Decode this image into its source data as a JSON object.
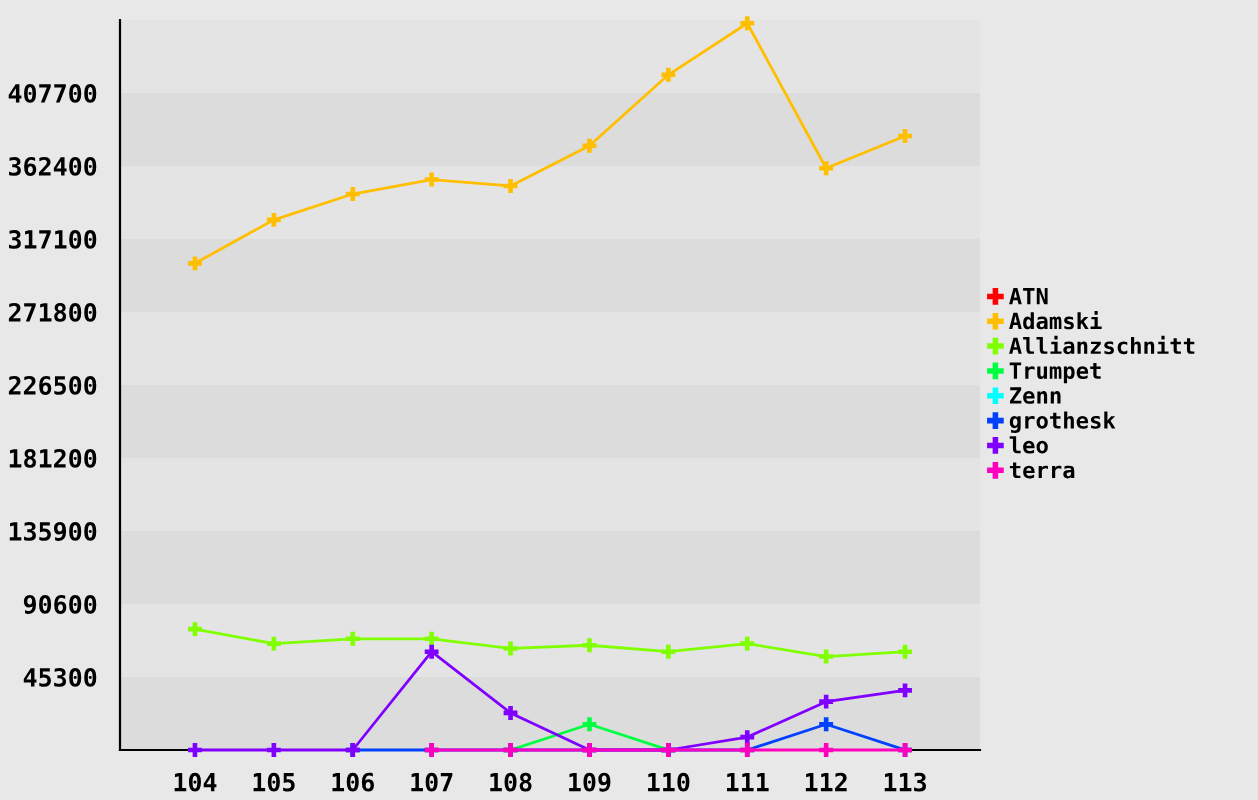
{
  "chart_data": {
    "type": "line",
    "categories": [
      "104",
      "105",
      "106",
      "107",
      "108",
      "109",
      "110",
      "111",
      "112",
      "113"
    ],
    "series": [
      {
        "name": "ATN",
        "color": "#ff0000",
        "values": [
          null,
          null,
          null,
          null,
          null,
          null,
          null,
          null,
          null,
          null
        ]
      },
      {
        "name": "Adamski",
        "color": "#ffbf00",
        "values": [
          302000,
          329000,
          345000,
          354000,
          350000,
          375000,
          419000,
          451000,
          361000,
          381000
        ]
      },
      {
        "name": "Allianzschnitt",
        "color": "#80ff00",
        "values": [
          75000,
          66000,
          69000,
          69000,
          63000,
          65000,
          61000,
          66000,
          58000,
          61000
        ]
      },
      {
        "name": "Trumpet",
        "color": "#00ff40",
        "values": [
          null,
          null,
          null,
          null,
          0,
          16000,
          0,
          null,
          null,
          null
        ]
      },
      {
        "name": "Zenn",
        "color": "#00ffff",
        "values": [
          null,
          null,
          null,
          null,
          null,
          null,
          null,
          null,
          null,
          null
        ]
      },
      {
        "name": "grothesk",
        "color": "#0040ff",
        "values": [
          null,
          null,
          0,
          0,
          0,
          0,
          0,
          0,
          16000,
          0
        ]
      },
      {
        "name": "leo",
        "color": "#8000ff",
        "values": [
          0,
          0,
          0,
          61000,
          23000,
          0,
          0,
          8000,
          30000,
          37000
        ]
      },
      {
        "name": "terra",
        "color": "#ff00bf",
        "values": [
          null,
          null,
          null,
          0,
          0,
          0,
          0,
          0,
          0,
          0
        ]
      }
    ],
    "ylim": [
      0,
      453000
    ],
    "yticks": [
      45300,
      90600,
      135900,
      181200,
      226500,
      271800,
      317100,
      362400,
      407700
    ],
    "bands": [
      {
        "axis": "y",
        "from": 0,
        "to": 45300,
        "color": "#dcdcdc"
      },
      {
        "axis": "y",
        "from": 90600,
        "to": 135900,
        "color": "#dcdcdc"
      },
      {
        "axis": "y",
        "from": 181200,
        "to": 226500,
        "color": "#dcdcdc"
      },
      {
        "axis": "y",
        "from": 271800,
        "to": 317100,
        "color": "#dcdcdc"
      },
      {
        "axis": "y",
        "from": 362400,
        "to": 407700,
        "color": "#dcdcdc"
      }
    ],
    "legend": "right",
    "marker": "cross",
    "line_style": "solid"
  }
}
